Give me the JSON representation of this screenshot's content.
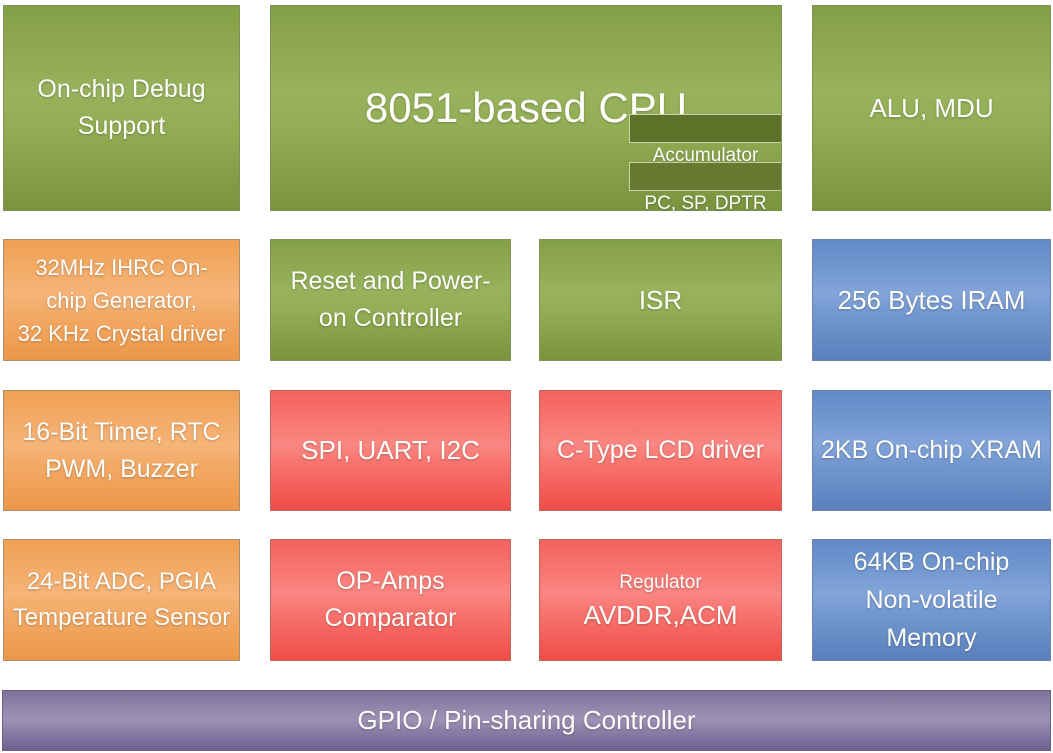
{
  "colors": {
    "green": "#8CA751",
    "orange": "#F2A765",
    "red": "#F76B66",
    "blue": "#6F96CE",
    "purple": "#8E81A9",
    "register_box_dark": "#5D7129",
    "register_box_light": "#66792F",
    "text": "#FDFDF9"
  },
  "blocks": {
    "debug": {
      "label": "On-chip Debug\nSupport"
    },
    "cpu": {
      "label": "8051-based CPU",
      "accumulator": "Accumulator",
      "registers": "PC, SP, DPTR"
    },
    "alu": {
      "label": "ALU, MDU"
    },
    "clock": {
      "label": "32MHz IHRC On-\nchip Generator,\n32 KHz Crystal driver"
    },
    "reset": {
      "label": "Reset and Power-\non Controller"
    },
    "isr": {
      "label": "ISR"
    },
    "iram": {
      "label": "256 Bytes IRAM"
    },
    "timer": {
      "label": "16-Bit Timer, RTC\nPWM, Buzzer"
    },
    "serial": {
      "label": "SPI, UART, I2C"
    },
    "lcd": {
      "label": "C-Type LCD driver"
    },
    "xram": {
      "label": "2KB On-chip XRAM"
    },
    "adc": {
      "label": "24-Bit ADC, PGIA\nTemperature Sensor"
    },
    "opamps": {
      "label": "OP-Amps\nComparator"
    },
    "regulator": {
      "label_small": "Regulator",
      "label_large": "AVDDR,ACM"
    },
    "nvm": {
      "label": "64KB On-chip\nNon-volatile\nMemory"
    },
    "gpio": {
      "label": "GPIO / Pin-sharing Controller"
    }
  }
}
